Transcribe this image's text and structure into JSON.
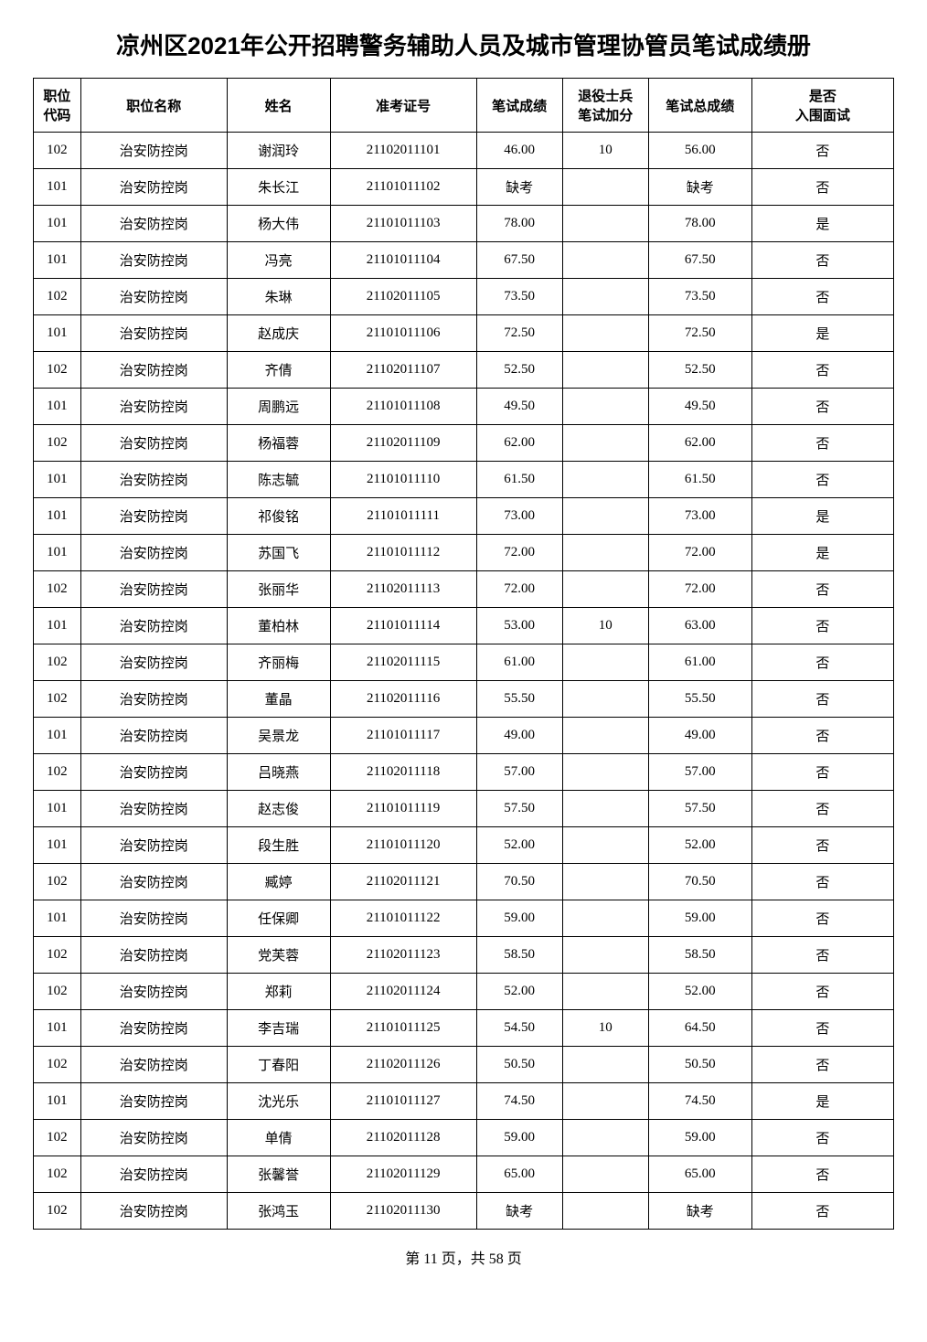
{
  "title": "凉州区2021年公开招聘警务辅助人员及城市管理协管员笔试成绩册",
  "footer": "第 11 页，共 58 页",
  "columns": [
    "职位\n代码",
    "职位名称",
    "姓名",
    "准考证号",
    "笔试成绩",
    "退役士兵\n笔试加分",
    "笔试总成绩",
    "是否\n入围面试"
  ],
  "rows": [
    [
      "102",
      "治安防控岗",
      "谢润玲",
      "21102011101",
      "46.00",
      "10",
      "56.00",
      "否"
    ],
    [
      "101",
      "治安防控岗",
      "朱长江",
      "21101011102",
      "缺考",
      "",
      "缺考",
      "否"
    ],
    [
      "101",
      "治安防控岗",
      "杨大伟",
      "21101011103",
      "78.00",
      "",
      "78.00",
      "是"
    ],
    [
      "101",
      "治安防控岗",
      "冯亮",
      "21101011104",
      "67.50",
      "",
      "67.50",
      "否"
    ],
    [
      "102",
      "治安防控岗",
      "朱琳",
      "21102011105",
      "73.50",
      "",
      "73.50",
      "否"
    ],
    [
      "101",
      "治安防控岗",
      "赵成庆",
      "21101011106",
      "72.50",
      "",
      "72.50",
      "是"
    ],
    [
      "102",
      "治安防控岗",
      "齐倩",
      "21102011107",
      "52.50",
      "",
      "52.50",
      "否"
    ],
    [
      "101",
      "治安防控岗",
      "周鹏远",
      "21101011108",
      "49.50",
      "",
      "49.50",
      "否"
    ],
    [
      "102",
      "治安防控岗",
      "杨福蓉",
      "21102011109",
      "62.00",
      "",
      "62.00",
      "否"
    ],
    [
      "101",
      "治安防控岗",
      "陈志毓",
      "21101011110",
      "61.50",
      "",
      "61.50",
      "否"
    ],
    [
      "101",
      "治安防控岗",
      "祁俊铭",
      "21101011111",
      "73.00",
      "",
      "73.00",
      "是"
    ],
    [
      "101",
      "治安防控岗",
      "苏国飞",
      "21101011112",
      "72.00",
      "",
      "72.00",
      "是"
    ],
    [
      "102",
      "治安防控岗",
      "张丽华",
      "21102011113",
      "72.00",
      "",
      "72.00",
      "否"
    ],
    [
      "101",
      "治安防控岗",
      "董柏林",
      "21101011114",
      "53.00",
      "10",
      "63.00",
      "否"
    ],
    [
      "102",
      "治安防控岗",
      "齐丽梅",
      "21102011115",
      "61.00",
      "",
      "61.00",
      "否"
    ],
    [
      "102",
      "治安防控岗",
      "董晶",
      "21102011116",
      "55.50",
      "",
      "55.50",
      "否"
    ],
    [
      "101",
      "治安防控岗",
      "吴景龙",
      "21101011117",
      "49.00",
      "",
      "49.00",
      "否"
    ],
    [
      "102",
      "治安防控岗",
      "吕晓燕",
      "21102011118",
      "57.00",
      "",
      "57.00",
      "否"
    ],
    [
      "101",
      "治安防控岗",
      "赵志俊",
      "21101011119",
      "57.50",
      "",
      "57.50",
      "否"
    ],
    [
      "101",
      "治安防控岗",
      "段生胜",
      "21101011120",
      "52.00",
      "",
      "52.00",
      "否"
    ],
    [
      "102",
      "治安防控岗",
      "臧婷",
      "21102011121",
      "70.50",
      "",
      "70.50",
      "否"
    ],
    [
      "101",
      "治安防控岗",
      "任保卿",
      "21101011122",
      "59.00",
      "",
      "59.00",
      "否"
    ],
    [
      "102",
      "治安防控岗",
      "党芙蓉",
      "21102011123",
      "58.50",
      "",
      "58.50",
      "否"
    ],
    [
      "102",
      "治安防控岗",
      "郑莉",
      "21102011124",
      "52.00",
      "",
      "52.00",
      "否"
    ],
    [
      "101",
      "治安防控岗",
      "李吉瑞",
      "21101011125",
      "54.50",
      "10",
      "64.50",
      "否"
    ],
    [
      "102",
      "治安防控岗",
      "丁春阳",
      "21102011126",
      "50.50",
      "",
      "50.50",
      "否"
    ],
    [
      "101",
      "治安防控岗",
      "沈光乐",
      "21101011127",
      "74.50",
      "",
      "74.50",
      "是"
    ],
    [
      "102",
      "治安防控岗",
      "单倩",
      "21102011128",
      "59.00",
      "",
      "59.00",
      "否"
    ],
    [
      "102",
      "治安防控岗",
      "张馨誉",
      "21102011129",
      "65.00",
      "",
      "65.00",
      "否"
    ],
    [
      "102",
      "治安防控岗",
      "张鸿玉",
      "21102011130",
      "缺考",
      "",
      "缺考",
      "否"
    ]
  ]
}
